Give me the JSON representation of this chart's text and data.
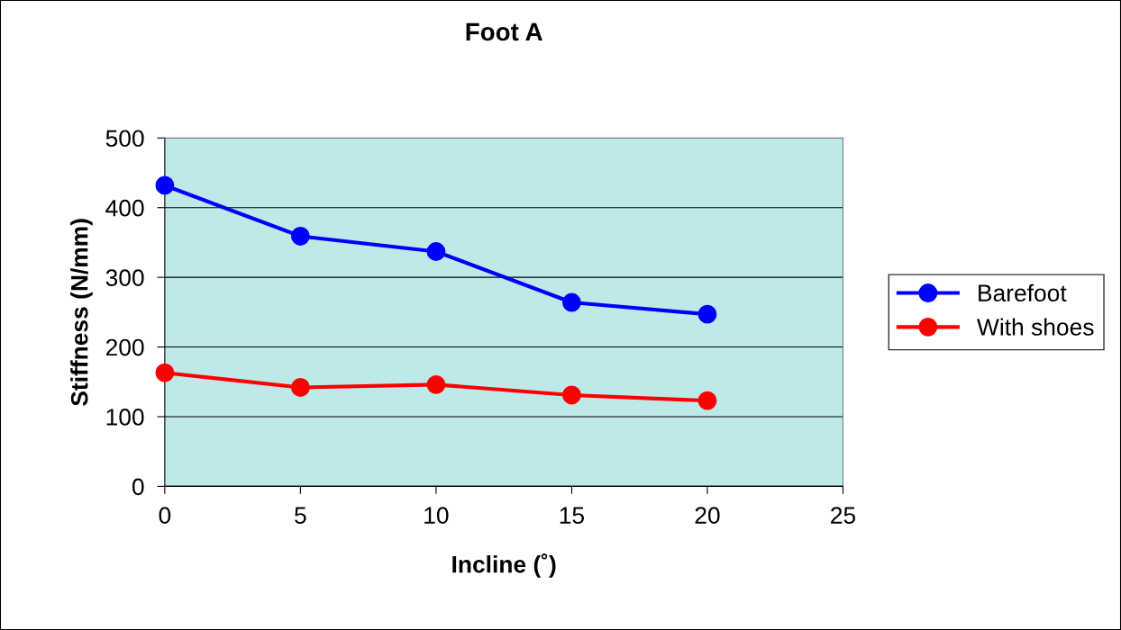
{
  "chart_data": {
    "type": "line",
    "title": "Foot A",
    "xlabel": "Incline (˚)",
    "ylabel": "Stiffness (N/mm)",
    "x": [
      0,
      5,
      10,
      15,
      20
    ],
    "series": [
      {
        "name": "Barefoot",
        "color": "#0000ff",
        "values": [
          432,
          359,
          337,
          264,
          247
        ]
      },
      {
        "name": "With shoes",
        "color": "#ff0000",
        "values": [
          163,
          142,
          146,
          131,
          123
        ]
      }
    ],
    "xlim": [
      0,
      25
    ],
    "xticks": [
      0,
      5,
      10,
      15,
      20,
      25
    ],
    "ylim": [
      0,
      500
    ],
    "yticks": [
      0,
      100,
      200,
      300,
      400,
      500
    ],
    "grid": "y",
    "legend": "right",
    "marker": "circle",
    "line_style": "solid"
  }
}
